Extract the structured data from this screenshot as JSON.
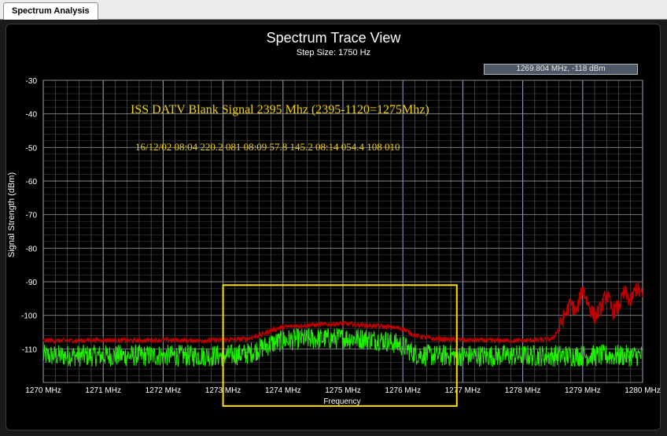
{
  "tab": {
    "label": "Spectrum Analysis"
  },
  "readout": {
    "text": "1269.804 MHz,   -118 dBm"
  },
  "annotations": {
    "line1": "ISS DATV Blank Signal 2395 Mhz (2395-1120=1275Mhz)",
    "line2": "16/12/02  08:04 220.2 081 08:09 57.8 145.2 08:14 054.4 108 010",
    "color": "#f0d000"
  },
  "colors": {
    "trace_max": "#c00000",
    "trace_live": "#22ee00",
    "highlight_box": "#ffe000",
    "grid": "#6a6a6a",
    "grid_major": "#a0a8c8"
  },
  "chart_data": {
    "type": "line",
    "title": "Spectrum Trace View",
    "subtitle": "Step Size: 1750 Hz",
    "xlabel": "Frequency",
    "ylabel": "Signal Strength (dBm)",
    "xlim": [
      1270,
      1280
    ],
    "ylim": [
      -120,
      -30
    ],
    "x_ticks": [
      1270,
      1271,
      1272,
      1273,
      1274,
      1275,
      1276,
      1277,
      1278,
      1279,
      1280
    ],
    "x_tick_labels": [
      "1270 MHz",
      "1271 MHz",
      "1272 MHz",
      "1273 MHz",
      "1274 MHz",
      "1275 MHz",
      "1276 MHz",
      "1277 MHz",
      "1278 MHz",
      "1279 MHz",
      "1280 MHz"
    ],
    "y_ticks": [
      -30,
      -40,
      -50,
      -60,
      -70,
      -80,
      -90,
      -100,
      -110
    ],
    "y_tick_labels": [
      "-30",
      "-40",
      "-50",
      "-60",
      "-70",
      "-80",
      "-90",
      "-100",
      "-110"
    ],
    "grid": true,
    "highlight_region": {
      "x": [
        1273.0,
        1276.9
      ],
      "y": [
        -91,
        -127
      ]
    },
    "series": [
      {
        "role": "max-hold",
        "x": [
          1270,
          1270.5,
          1271,
          1271.5,
          1272,
          1272.5,
          1273,
          1273.4,
          1273.6,
          1273.8,
          1274.0,
          1274.3,
          1274.6,
          1275.0,
          1275.4,
          1275.7,
          1276.0,
          1276.2,
          1276.5,
          1277,
          1277.5,
          1278,
          1278.3,
          1278.5,
          1278.6,
          1278.7,
          1278.8,
          1278.9,
          1279.0,
          1279.1,
          1279.2,
          1279.3,
          1279.4,
          1279.5,
          1279.6,
          1279.7,
          1279.8,
          1279.9,
          1280
        ],
        "values": [
          -107.5,
          -107.5,
          -107.3,
          -107.5,
          -107.3,
          -107.5,
          -107.3,
          -107.0,
          -106.0,
          -104.5,
          -103.5,
          -103.0,
          -102.8,
          -102.5,
          -103.0,
          -103.3,
          -104.0,
          -106.0,
          -107.0,
          -107.3,
          -107.5,
          -107.5,
          -107.3,
          -107.0,
          -104.0,
          -100.0,
          -96.5,
          -99.0,
          -92.0,
          -97.0,
          -100.5,
          -98.0,
          -93.5,
          -99.0,
          -97.5,
          -93.0,
          -96.0,
          -91.5,
          -94.5
        ]
      },
      {
        "role": "live",
        "x": [
          1270,
          1270.5,
          1271,
          1271.5,
          1272,
          1272.5,
          1273,
          1273.4,
          1273.6,
          1273.8,
          1274.0,
          1274.3,
          1274.6,
          1275.0,
          1275.4,
          1275.7,
          1276.0,
          1276.2,
          1276.5,
          1277,
          1277.5,
          1278,
          1278.5,
          1279,
          1279.5,
          1280
        ],
        "values": [
          -112.0,
          -112.0,
          -112.0,
          -112.0,
          -112.0,
          -112.0,
          -112.0,
          -111.5,
          -110.0,
          -108.5,
          -107.5,
          -107.0,
          -107.0,
          -106.8,
          -107.0,
          -107.5,
          -109.0,
          -111.5,
          -112.0,
          -112.0,
          -112.0,
          -112.0,
          -112.0,
          -112.0,
          -112.0,
          -112.0
        ]
      }
    ]
  }
}
